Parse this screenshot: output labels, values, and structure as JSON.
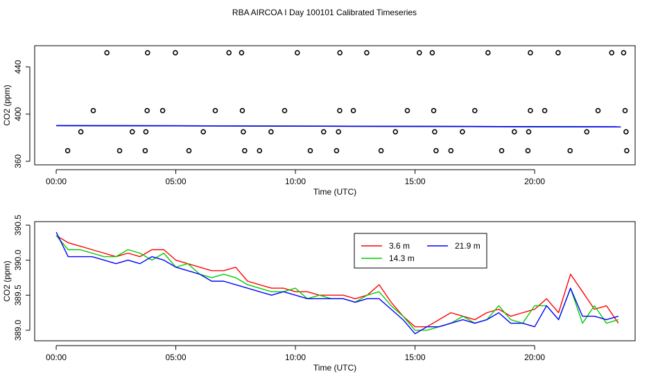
{
  "title": "RBA AIRCOA I  Day 100101  Calibrated Timeseries",
  "chart_data": [
    {
      "type": "scatter",
      "xlabel": "Time (UTC)",
      "ylabel": "CO2 (ppm)",
      "xlim": [
        -0.9,
        24.2
      ],
      "ylim": [
        357,
        458
      ],
      "x_ticks": [
        0,
        5,
        10,
        15,
        20
      ],
      "x_tick_labels": [
        "00:00",
        "05:00",
        "10:00",
        "15:00",
        "20:00"
      ],
      "y_ticks": [
        360,
        400,
        440
      ],
      "y_tick_labels": [
        "360",
        "400",
        "440"
      ],
      "grid": false,
      "points": {
        "x": [
          2.12,
          3.82,
          4.98,
          7.22,
          7.75,
          10.08,
          11.86,
          12.98,
          15.18,
          15.72,
          18.05,
          19.82,
          20.98,
          23.22,
          23.72,
          1.55,
          3.8,
          4.45,
          6.65,
          7.78,
          9.55,
          11.85,
          12.42,
          14.68,
          15.78,
          17.5,
          19.82,
          20.42,
          22.65,
          23.78,
          1.03,
          3.18,
          3.75,
          6.15,
          7.82,
          8.98,
          11.18,
          11.8,
          14.18,
          15.82,
          16.98,
          19.15,
          19.75,
          22.18,
          23.82,
          0.48,
          2.65,
          3.72,
          5.55,
          7.88,
          8.5,
          10.62,
          11.72,
          13.58,
          15.88,
          16.5,
          18.62,
          19.72,
          21.48,
          23.85
        ],
        "y": [
          452,
          452,
          452,
          452,
          452,
          452,
          452,
          452,
          452,
          452,
          452,
          452,
          452,
          452,
          452,
          403,
          403,
          403,
          403,
          403,
          403,
          403,
          403,
          403,
          403,
          403,
          403,
          403,
          403,
          403,
          385,
          385,
          385,
          385,
          385,
          385,
          385,
          385,
          385,
          385,
          385,
          385,
          385,
          385,
          385,
          369,
          369,
          369,
          369,
          369,
          369,
          369,
          369,
          369,
          369,
          369,
          369,
          369,
          369,
          369
        ]
      },
      "series": [
        {
          "name": "3.6 m",
          "color": "#ff0000",
          "x": [
            0,
            23.6
          ],
          "y": [
            390.3,
            389.2
          ]
        },
        {
          "name": "14.3 m",
          "color": "#00cc00",
          "x": [
            0,
            23.6
          ],
          "y": [
            390.3,
            389.2
          ]
        },
        {
          "name": "21.9 m",
          "color": "#0000ff",
          "x": [
            0,
            23.6
          ],
          "y": [
            390.3,
            389.2
          ]
        }
      ]
    },
    {
      "type": "line",
      "xlabel": "Time (UTC)",
      "ylabel": "CO2 (ppm)",
      "xlim": [
        -0.9,
        24.2
      ],
      "ylim": [
        388.85,
        390.55
      ],
      "x_ticks": [
        0,
        5,
        10,
        15,
        20
      ],
      "x_tick_labels": [
        "00:00",
        "05:00",
        "10:00",
        "15:00",
        "20:00"
      ],
      "y_ticks": [
        389.0,
        389.5,
        390.0,
        390.5
      ],
      "y_tick_labels": [
        "389.0",
        "389.5",
        "390.0",
        "390.5"
      ],
      "grid": false,
      "legend": "top-center",
      "x": [
        0.0,
        0.5,
        1.0,
        1.5,
        2.0,
        2.5,
        3.0,
        3.5,
        4.0,
        4.5,
        5.0,
        5.5,
        6.0,
        6.5,
        7.0,
        7.5,
        8.0,
        8.5,
        9.0,
        9.5,
        10.0,
        10.5,
        11.0,
        11.5,
        12.0,
        12.5,
        13.0,
        13.5,
        14.0,
        14.5,
        15.0,
        15.5,
        16.0,
        16.5,
        17.0,
        17.5,
        18.0,
        18.5,
        19.0,
        19.5,
        20.0,
        20.5,
        21.0,
        21.5,
        22.0,
        22.5,
        23.0,
        23.5
      ],
      "series": [
        {
          "name": "3.6 m",
          "color": "#ff0000",
          "values": [
            390.35,
            390.25,
            390.2,
            390.15,
            390.1,
            390.05,
            390.1,
            390.05,
            390.15,
            390.15,
            390.0,
            389.95,
            389.9,
            389.85,
            389.85,
            389.9,
            389.7,
            389.65,
            389.6,
            389.6,
            389.55,
            389.55,
            389.5,
            389.5,
            389.5,
            389.45,
            389.5,
            389.65,
            389.4,
            389.2,
            389.05,
            389.05,
            389.15,
            389.25,
            389.2,
            389.15,
            389.25,
            389.3,
            389.2,
            389.25,
            389.3,
            389.45,
            389.25,
            389.8,
            389.55,
            389.3,
            389.35,
            389.1
          ]
        },
        {
          "name": "14.3 m",
          "color": "#00cc00",
          "values": [
            390.35,
            390.15,
            390.15,
            390.1,
            390.05,
            390.05,
            390.15,
            390.1,
            390.0,
            390.1,
            389.9,
            389.95,
            389.8,
            389.75,
            389.8,
            389.75,
            389.65,
            389.6,
            389.55,
            389.55,
            389.6,
            389.45,
            389.5,
            389.45,
            389.45,
            389.4,
            389.5,
            389.55,
            389.35,
            389.2,
            389.0,
            389.0,
            389.05,
            389.1,
            389.2,
            389.1,
            389.15,
            389.35,
            389.15,
            389.1,
            389.35,
            389.35,
            389.15,
            389.6,
            389.1,
            389.35,
            389.1,
            389.15
          ]
        },
        {
          "name": "21.9 m",
          "color": "#0000ff",
          "values": [
            390.4,
            390.05,
            390.05,
            390.05,
            390.0,
            389.95,
            390.0,
            389.95,
            390.05,
            390.0,
            389.9,
            389.85,
            389.8,
            389.7,
            389.7,
            389.65,
            389.6,
            389.55,
            389.5,
            389.55,
            389.5,
            389.45,
            389.45,
            389.45,
            389.45,
            389.4,
            389.45,
            389.45,
            389.3,
            389.15,
            388.95,
            389.05,
            389.05,
            389.1,
            389.15,
            389.1,
            389.15,
            389.25,
            389.1,
            389.1,
            389.05,
            389.35,
            389.15,
            389.6,
            389.2,
            389.2,
            389.15,
            389.2
          ]
        }
      ]
    }
  ]
}
